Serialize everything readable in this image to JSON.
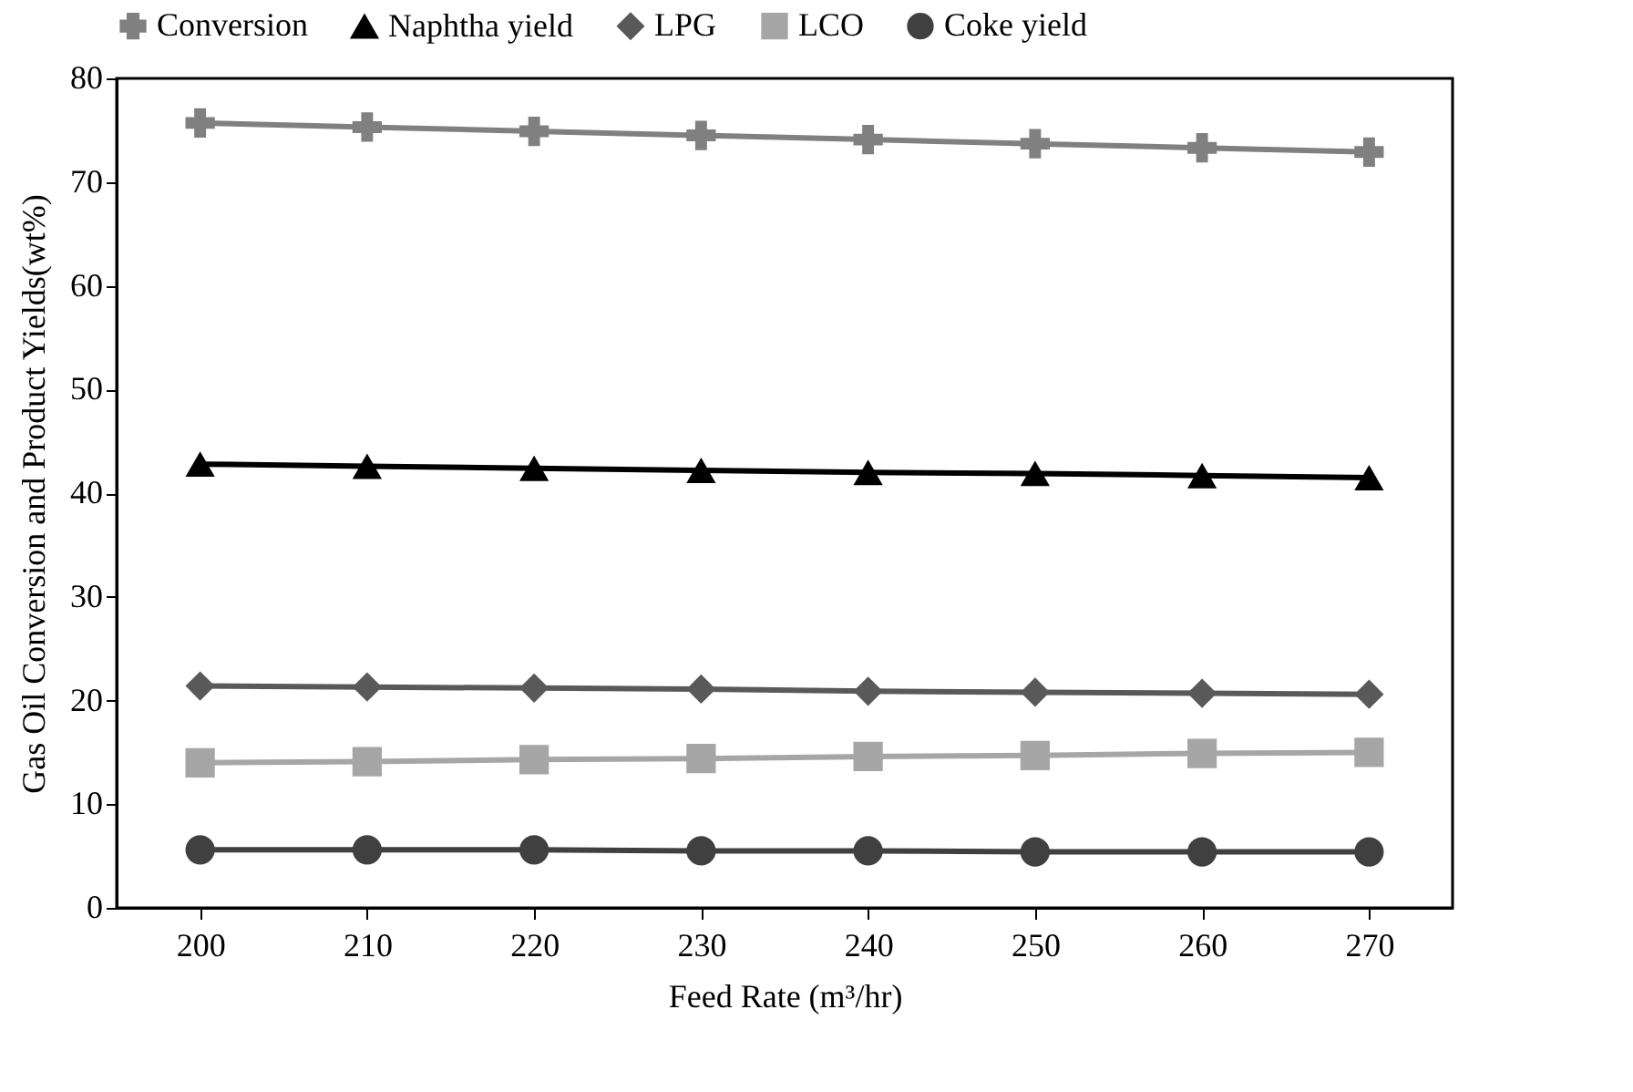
{
  "chart_data": {
    "type": "line",
    "xlabel": "Feed Rate (m³/hr)",
    "ylabel": "Gas Oil Conversion and Product Yields(wt%)",
    "categories": [
      "200",
      "210",
      "220",
      "230",
      "240",
      "250",
      "260",
      "270"
    ],
    "series": [
      {
        "name": "Conversion",
        "color": "#808080",
        "marker": "cross",
        "values": [
          75.7,
          75.3,
          74.9,
          74.5,
          74.1,
          73.7,
          73.3,
          72.9
        ]
      },
      {
        "name": "Naphtha yield",
        "color": "#000000",
        "marker": "triangle",
        "values": [
          42.8,
          42.6,
          42.4,
          42.2,
          42.0,
          41.9,
          41.7,
          41.5
        ]
      },
      {
        "name": "LPG",
        "color": "#595959",
        "marker": "diamond",
        "values": [
          21.4,
          21.3,
          21.2,
          21.1,
          20.9,
          20.8,
          20.7,
          20.6
        ]
      },
      {
        "name": "LCO",
        "color": "#a6a6a6",
        "marker": "square",
        "values": [
          14.0,
          14.1,
          14.3,
          14.4,
          14.6,
          14.7,
          14.9,
          15.0
        ]
      },
      {
        "name": "Coke yield",
        "color": "#404040",
        "marker": "circle",
        "values": [
          5.6,
          5.6,
          5.6,
          5.5,
          5.5,
          5.4,
          5.4,
          5.4
        ]
      }
    ],
    "ylim": [
      0,
      80
    ],
    "yticks": [
      0,
      10,
      20,
      30,
      40,
      50,
      60,
      70,
      80
    ],
    "grid": false,
    "legend": "top"
  }
}
